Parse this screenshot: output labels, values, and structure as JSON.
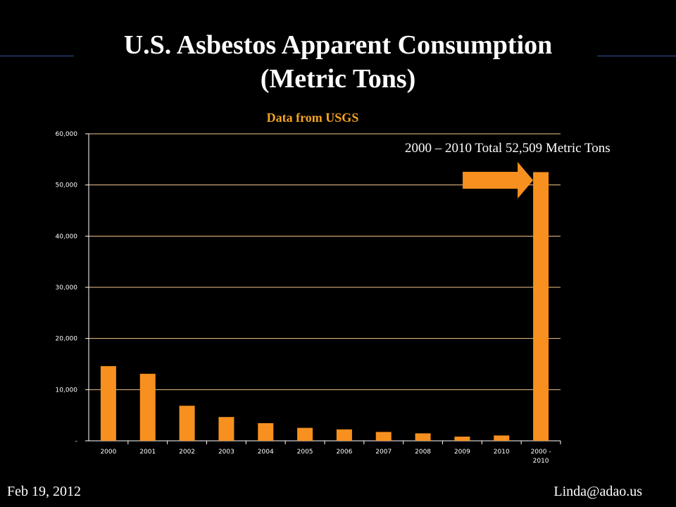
{
  "slide": {
    "title_line1": "U.S. Asbestos Apparent Consumption",
    "title_line2": "(Metric Tons)",
    "footer_left": "Feb 19, 2012",
    "footer_right": "Linda@adao.us"
  },
  "colors": {
    "background": "#000000",
    "bar": "#f7901e",
    "subtitle": "#f6a41c",
    "gridline": "#f7c68a",
    "rule": "#2f5597"
  },
  "chart_data": {
    "type": "bar",
    "title": "Data from USGS",
    "xlabel": "",
    "ylabel": "",
    "categories": [
      "2000",
      "2001",
      "2002",
      "2003",
      "2004",
      "2005",
      "2006",
      "2007",
      "2008",
      "2009",
      "2010",
      "2000 - 2010"
    ],
    "values": [
      14600,
      13100,
      6850,
      4650,
      3450,
      2530,
      2230,
      1730,
      1460,
      820,
      1040,
      52509
    ],
    "ylim": [
      0,
      60000
    ],
    "yticks": [
      0,
      10000,
      20000,
      30000,
      40000,
      50000,
      60000
    ],
    "ytick_labels": [
      "-",
      "10,000",
      "20,000",
      "30,000",
      "40,000",
      "50,000",
      "60,000"
    ],
    "grid": true,
    "annotation": {
      "text": "2000 – 2010 Total 52,509 Metric Tons",
      "target_category": "2000 - 2010",
      "arrow": "right-arrow"
    }
  }
}
